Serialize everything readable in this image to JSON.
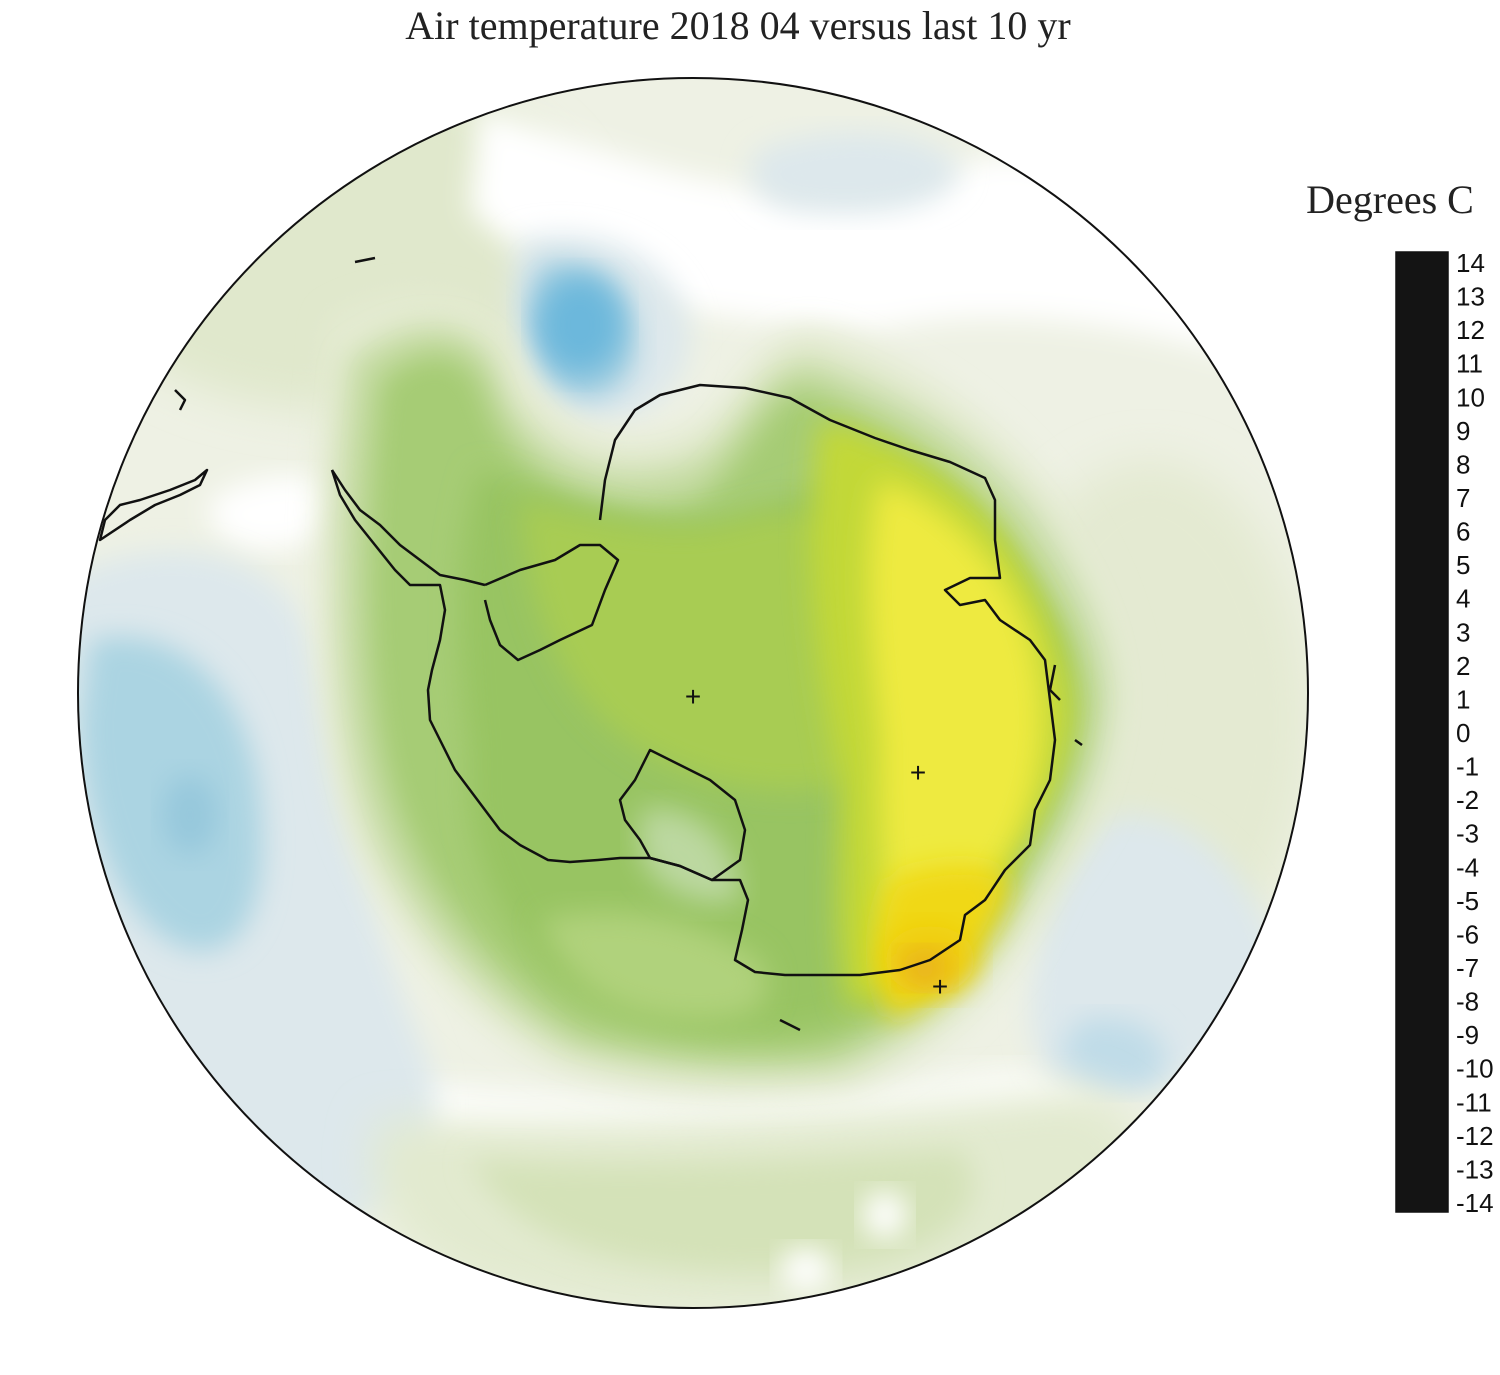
{
  "title": "Air temperature 2018 04 versus last 10 yr",
  "legend": {
    "title": "Degrees C",
    "min": -14,
    "max": 14,
    "tick_labels": [
      "14",
      "13",
      "12",
      "11",
      "10",
      "9",
      "8",
      "7",
      "6",
      "5",
      "4",
      "3",
      "2",
      "1",
      "0",
      "-1",
      "-2",
      "-3",
      "-4",
      "-5",
      "-6",
      "-7",
      "-8",
      "-9",
      "-10",
      "-11",
      "-12",
      "-13",
      "-14"
    ],
    "color_stops": [
      {
        "value": -14,
        "color": "#141414"
      },
      {
        "value": -12.5,
        "color": "#1c1c44"
      },
      {
        "value": -11,
        "color": "#2a1a6e"
      },
      {
        "value": -9,
        "color": "#4a2a92"
      },
      {
        "value": -7,
        "color": "#3c4a9c"
      },
      {
        "value": -5,
        "color": "#3c58b0"
      },
      {
        "value": -3,
        "color": "#3a78c6"
      },
      {
        "value": -2,
        "color": "#36a6dc"
      },
      {
        "value": -1,
        "color": "#a6d4e4"
      },
      {
        "value": -0.3,
        "color": "#dde8ec"
      },
      {
        "value": 0,
        "color": "#ffffff"
      },
      {
        "value": 0.5,
        "color": "#ebefe0"
      },
      {
        "value": 1,
        "color": "#c6dca4"
      },
      {
        "value": 2,
        "color": "#98c462"
      },
      {
        "value": 3,
        "color": "#bcd43a"
      },
      {
        "value": 4,
        "color": "#eeea40"
      },
      {
        "value": 5,
        "color": "#f2d010"
      },
      {
        "value": 6,
        "color": "#e8a020"
      },
      {
        "value": 7,
        "color": "#e28030"
      },
      {
        "value": 8,
        "color": "#e25a28"
      },
      {
        "value": 9,
        "color": "#e04028"
      },
      {
        "value": 10,
        "color": "#dc2c2c"
      },
      {
        "value": 11,
        "color": "#e0284c"
      },
      {
        "value": 12,
        "color": "#e02a80"
      },
      {
        "value": 13,
        "color": "#d04ea0"
      },
      {
        "value": 14,
        "color": "#c078b4"
      }
    ]
  },
  "markers": [
    {
      "symbol": "+",
      "name": "plus-marker-pole"
    },
    {
      "symbol": "+",
      "name": "plus-marker-east"
    },
    {
      "symbol": "+",
      "name": "plus-marker-coast"
    }
  ]
}
